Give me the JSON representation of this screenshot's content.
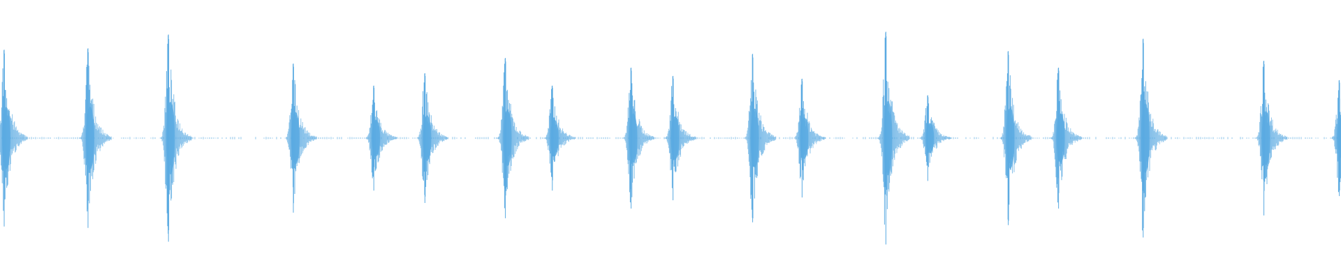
{
  "chart_data": {
    "type": "waveform",
    "color": "#5aaae2",
    "x": [
      0.05,
      1.05,
      2.01,
      3.5,
      4.46,
      5.07,
      6.03,
      6.59,
      7.53,
      8.03,
      8.98,
      9.57,
      10.57,
      11.07,
      12.03,
      12.63,
      13.64,
      15.08,
      15.98
    ],
    "values": [
      0.64,
      0.65,
      0.75,
      0.54,
      0.38,
      0.47,
      0.58,
      0.38,
      0.51,
      0.45,
      0.61,
      0.43,
      0.77,
      0.31,
      0.63,
      0.51,
      0.72,
      0.56,
      0.42
    ],
    "xlim": [
      0,
      16
    ],
    "ylim": [
      -1,
      1
    ]
  }
}
